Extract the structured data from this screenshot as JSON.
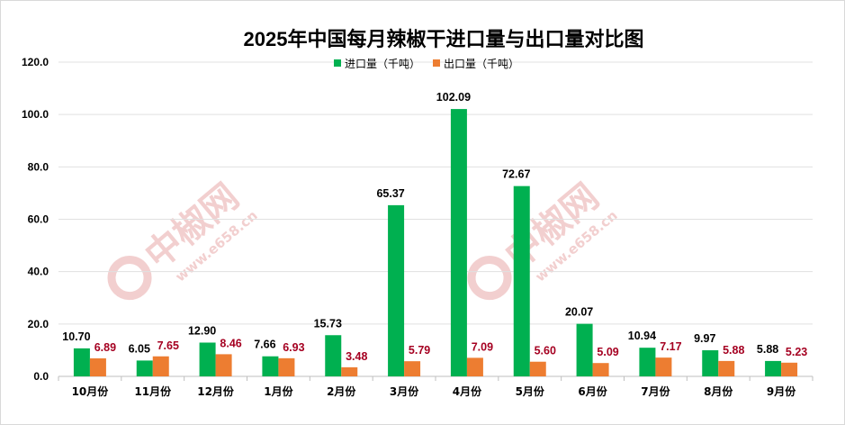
{
  "watermark": {
    "brand": "中椒网",
    "url": "www.e658.cn",
    "color": "#e8a8a8",
    "green": "#9fd49f"
  },
  "colors": {
    "import": "#00b050",
    "export": "#ed7d31",
    "export_label": "#a50021",
    "grid": "#e0e0e0",
    "axis": "#bfbfbf"
  },
  "chart_data": {
    "type": "bar",
    "title": "2025年中国每月辣椒干进口量与出口量对比图",
    "xlabel": "",
    "ylabel": "",
    "ylim": [
      0,
      120
    ],
    "y_ticks": [
      "0.0",
      "20.0",
      "40.0",
      "60.0",
      "80.0",
      "100.0",
      "120.0"
    ],
    "grid": true,
    "legend_position": "top",
    "categories": [
      "10月份",
      "11月份",
      "12月份",
      "1月份",
      "2月份",
      "3月份",
      "4月份",
      "5月份",
      "6月份",
      "7月份",
      "8月份",
      "9月份"
    ],
    "series": [
      {
        "name": "进口量（千吨）",
        "values": [
          10.7,
          6.05,
          12.9,
          7.66,
          15.73,
          65.37,
          102.09,
          72.67,
          20.07,
          10.94,
          9.97,
          5.88
        ],
        "labels": [
          "10.70",
          "6.05",
          "12.90",
          "7.66",
          "15.73",
          "65.37",
          "102.09",
          "72.67",
          "20.07",
          "10.94",
          "9.97",
          "5.88"
        ]
      },
      {
        "name": "出口量（千吨）",
        "values": [
          6.89,
          7.65,
          8.46,
          6.93,
          3.48,
          5.79,
          7.09,
          5.6,
          5.09,
          7.17,
          5.88,
          5.23
        ],
        "labels": [
          "6.89",
          "7.65",
          "8.46",
          "6.93",
          "3.48",
          "5.79",
          "7.09",
          "5.60",
          "5.09",
          "7.17",
          "5.88",
          "5.23"
        ]
      }
    ]
  }
}
